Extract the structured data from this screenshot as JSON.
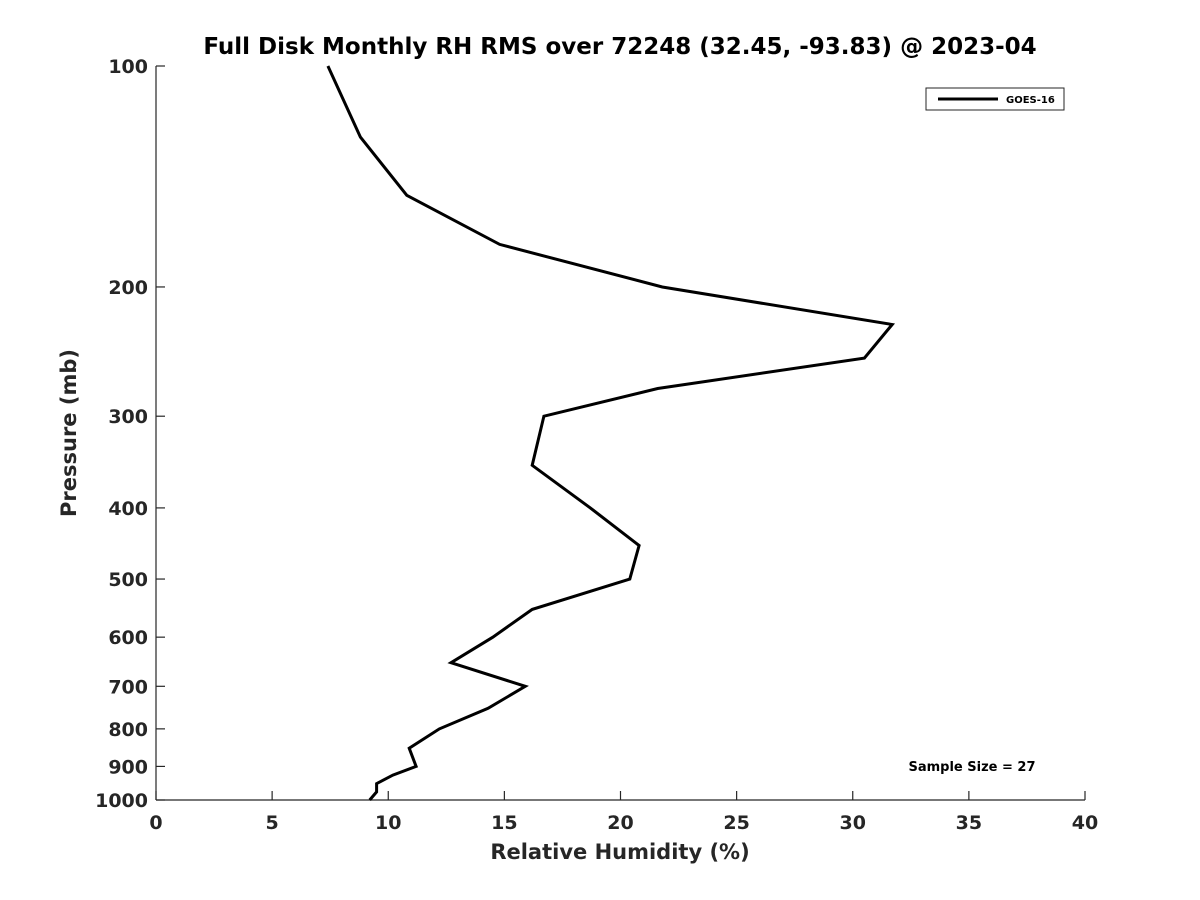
{
  "chart_data": {
    "type": "line",
    "title": "Full Disk Monthly RH RMS over 72248 (32.45, -93.83) @ 2023-04",
    "xlabel": "Relative Humidity (%)",
    "ylabel": "Pressure (mb)",
    "xlim": [
      0,
      40
    ],
    "ylim": [
      100,
      1000
    ],
    "yscale": "log",
    "yreversed": true,
    "xticks": [
      0,
      5,
      10,
      15,
      20,
      25,
      30,
      35,
      40
    ],
    "yticks": [
      100,
      200,
      300,
      400,
      500,
      600,
      700,
      800,
      900,
      1000
    ],
    "grid": false,
    "legend_position": "top-right",
    "series": [
      {
        "name": "GOES-16",
        "color": "#000000",
        "points": [
          {
            "x": 7.4,
            "y": 100
          },
          {
            "x": 8.8,
            "y": 125
          },
          {
            "x": 10.8,
            "y": 150
          },
          {
            "x": 14.8,
            "y": 175
          },
          {
            "x": 21.8,
            "y": 200
          },
          {
            "x": 31.7,
            "y": 225
          },
          {
            "x": 30.5,
            "y": 250
          },
          {
            "x": 21.6,
            "y": 275
          },
          {
            "x": 16.7,
            "y": 300
          },
          {
            "x": 16.2,
            "y": 350
          },
          {
            "x": 18.7,
            "y": 400
          },
          {
            "x": 20.8,
            "y": 450
          },
          {
            "x": 20.4,
            "y": 500
          },
          {
            "x": 16.2,
            "y": 550
          },
          {
            "x": 14.5,
            "y": 600
          },
          {
            "x": 12.7,
            "y": 650
          },
          {
            "x": 15.9,
            "y": 700
          },
          {
            "x": 14.3,
            "y": 750
          },
          {
            "x": 12.2,
            "y": 800
          },
          {
            "x": 10.9,
            "y": 850
          },
          {
            "x": 11.2,
            "y": 900
          },
          {
            "x": 10.2,
            "y": 925
          },
          {
            "x": 9.5,
            "y": 950
          },
          {
            "x": 9.5,
            "y": 975
          },
          {
            "x": 9.2,
            "y": 1000
          }
        ]
      }
    ],
    "annotation": "Sample Size = 27"
  }
}
